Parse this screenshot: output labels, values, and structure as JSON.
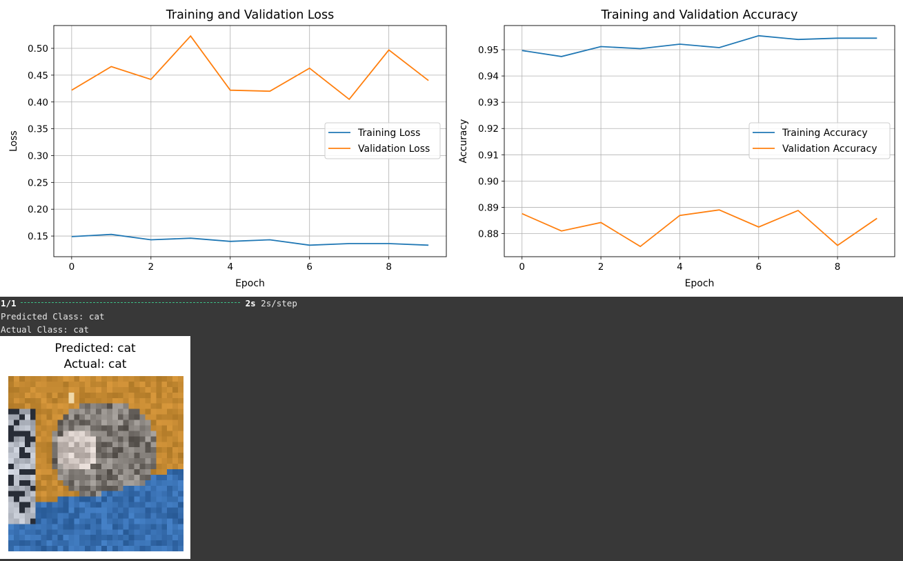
{
  "console": {
    "progress_count": "1/1",
    "progress_time": "2s",
    "progress_rate": "2s/step",
    "predicted_line": "Predicted Class: cat",
    "actual_line": "Actual Class: cat"
  },
  "image_card": {
    "predicted_title": "Predicted: cat",
    "actual_title": "Actual: cat"
  },
  "colors": {
    "training": "#1f77b4",
    "validation": "#ff7f0e",
    "grid": "#b0b0b0"
  },
  "chart_data": [
    {
      "type": "line",
      "title": "Training and Validation Loss",
      "xlabel": "Epoch",
      "ylabel": "Loss",
      "x": [
        0,
        1,
        2,
        3,
        4,
        5,
        6,
        7,
        8,
        9
      ],
      "xticks": [
        "0",
        "2",
        "4",
        "6",
        "8"
      ],
      "yticks": [
        "0.15",
        "0.20",
        "0.25",
        "0.30",
        "0.35",
        "0.40",
        "0.45",
        "0.50"
      ],
      "xlim": [
        -0.45,
        9.45
      ],
      "ylim": [
        0.1115,
        0.5425
      ],
      "grid": true,
      "legend": "center-right",
      "series": [
        {
          "name": "Training Loss",
          "values": [
            0.149,
            0.153,
            0.143,
            0.146,
            0.14,
            0.143,
            0.133,
            0.136,
            0.136,
            0.133
          ]
        },
        {
          "name": "Validation Loss",
          "values": [
            0.422,
            0.466,
            0.442,
            0.523,
            0.422,
            0.42,
            0.463,
            0.405,
            0.497,
            0.44
          ]
        }
      ]
    },
    {
      "type": "line",
      "title": "Training and Validation Accuracy",
      "xlabel": "Epoch",
      "ylabel": "Accuracy",
      "x": [
        0,
        1,
        2,
        3,
        4,
        5,
        6,
        7,
        8,
        9
      ],
      "xticks": [
        "0",
        "2",
        "4",
        "6",
        "8"
      ],
      "yticks": [
        "0.88",
        "0.89",
        "0.90",
        "0.91",
        "0.92",
        "0.93",
        "0.94",
        "0.95"
      ],
      "xlim": [
        -0.45,
        9.45
      ],
      "ylim": [
        0.8712,
        0.9592
      ],
      "grid": true,
      "legend": "center-right",
      "series": [
        {
          "name": "Training Accuracy",
          "values": [
            0.9497,
            0.9474,
            0.9512,
            0.9504,
            0.9521,
            0.9508,
            0.9553,
            0.9539,
            0.9544,
            0.9544
          ]
        },
        {
          "name": "Validation Accuracy",
          "values": [
            0.8876,
            0.881,
            0.8842,
            0.8751,
            0.8869,
            0.889,
            0.8825,
            0.8888,
            0.8755,
            0.8858
          ]
        }
      ]
    }
  ]
}
